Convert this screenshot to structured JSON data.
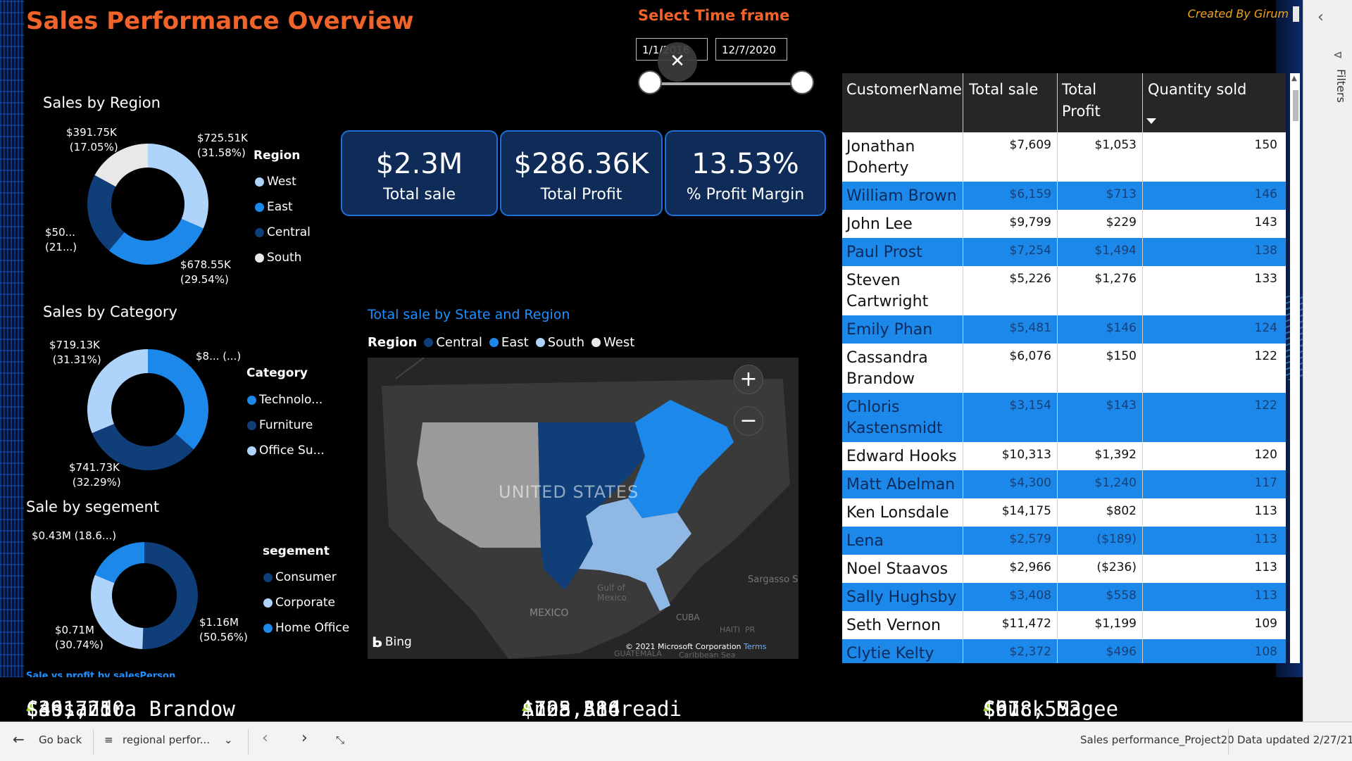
{
  "title": "Sales Performance Overview",
  "credit": "Created By Girum",
  "timeframe": {
    "title": "Select Time frame",
    "start": "1/1/2016",
    "end": "12/7/2020"
  },
  "region_chart": {
    "title": "Sales by Region",
    "legend_title": "Region",
    "slices": [
      {
        "name": "West",
        "value": "$725.51K",
        "pct": "(31.58%)",
        "color": "#aed4fb"
      },
      {
        "name": "East",
        "value": "$678.55K",
        "pct": "(29.54%)",
        "color": "#1c88ea"
      },
      {
        "name": "Central",
        "value": "$50...",
        "pct": "(21...)",
        "color": "#0f3e78"
      },
      {
        "name": "South",
        "value": "$391.75K",
        "pct": "(17.05%)",
        "color": "#e8e8e8"
      }
    ]
  },
  "category_chart": {
    "title": "Sales by Category",
    "legend_title": "Category",
    "slices": [
      {
        "name": "Technolo...",
        "value": "$8...",
        "pct": "(...)",
        "color": "#1c88ea"
      },
      {
        "name": "Furniture",
        "value": "$741.73K",
        "pct": "(32.29%)",
        "color": "#0f3e78"
      },
      {
        "name": "Office Su...",
        "value": "$719.13K",
        "pct": "(31.31%)",
        "color": "#aed4fb"
      }
    ]
  },
  "segment_chart": {
    "title": "Sale by segement",
    "legend_title": "segement",
    "slices": [
      {
        "name": "Consumer",
        "value": "$1.16M",
        "pct": "(50.56%)",
        "color": "#0f3e78"
      },
      {
        "name": "Corporate",
        "value": "$0.71M",
        "pct": "(30.74%)",
        "color": "#aed4fb"
      },
      {
        "name": "Home Office",
        "value": "$0.43M",
        "pct": "(18.6...)",
        "color": "#1c88ea"
      }
    ]
  },
  "kpis": [
    {
      "value": "$2.3M",
      "label": "Total sale"
    },
    {
      "value": "$286.36K",
      "label": "Total Profit"
    },
    {
      "value": "13.53%",
      "label": "% Profit Margin"
    }
  ],
  "map": {
    "title": "Total sale by State and Region",
    "legend_title": "Region",
    "legend": [
      {
        "name": "Central",
        "color": "#0f3e78"
      },
      {
        "name": "East",
        "color": "#1c88ea"
      },
      {
        "name": "South",
        "color": "#aed4fb"
      },
      {
        "name": "West",
        "color": "#e8e8e8"
      }
    ],
    "label_us": "UNITED STATES",
    "label_mexico": "MEXICO",
    "label_gulf": "Gulf of Mexico",
    "label_cuba": "CUBA",
    "label_sargasso": "Sargasso S",
    "label_guatemala": "GUATEMALA",
    "label_caribbean": "Caribbean Sea",
    "label_haiti": "HAITI",
    "label_pr": "PR",
    "attribution": "© 2021 Microsoft Corporation",
    "terms": "Terms",
    "bing": "Bing"
  },
  "table": {
    "headers": [
      "CustomerName",
      "Total sale",
      "Total Profit",
      "Quantity sold"
    ],
    "rows": [
      {
        "name": "Jonathan Doherty",
        "sale": "$7,609",
        "profit": "$1,053",
        "qty": "150"
      },
      {
        "name": "William Brown",
        "sale": "$6,159",
        "profit": "$713",
        "qty": "146"
      },
      {
        "name": "John Lee",
        "sale": "$9,799",
        "profit": "$229",
        "qty": "143"
      },
      {
        "name": "Paul Prost",
        "sale": "$7,254",
        "profit": "$1,494",
        "qty": "138"
      },
      {
        "name": "Steven Cartwright",
        "sale": "$5,226",
        "profit": "$1,276",
        "qty": "133"
      },
      {
        "name": "Emily Phan",
        "sale": "$5,481",
        "profit": "$146",
        "qty": "124"
      },
      {
        "name": "Cassandra Brandow",
        "sale": "$6,076",
        "profit": "$150",
        "qty": "122"
      },
      {
        "name": "Chloris Kastensmidt",
        "sale": "$3,154",
        "profit": "$143",
        "qty": "122"
      },
      {
        "name": "Edward Hooks",
        "sale": "$10,313",
        "profit": "$1,392",
        "qty": "120"
      },
      {
        "name": "Matt Abelman",
        "sale": "$4,300",
        "profit": "$1,240",
        "qty": "117"
      },
      {
        "name": "Ken Lonsdale",
        "sale": "$14,175",
        "profit": "$802",
        "qty": "113"
      },
      {
        "name": "Lena Cacioppo",
        "sale": "$2,579",
        "profit": "($189)",
        "qty": "113"
      },
      {
        "name": "Noel Staavos",
        "sale": "$2,966",
        "profit": "($236)",
        "qty": "113"
      },
      {
        "name": "Sally Hughsby",
        "sale": "$3,408",
        "profit": "$558",
        "qty": "113"
      },
      {
        "name": "Seth Vernon",
        "sale": "$11,472",
        "profit": "$1,199",
        "qty": "109"
      },
      {
        "name": "Clytie Kelty",
        "sale": "$2,372",
        "profit": "$496",
        "qty": "108"
      }
    ]
  },
  "ticker": {
    "label": "Sale vs profit by salesPerson",
    "items": [
      {
        "name": "Cassandra Brandow",
        "sale": "$391,750",
        "profit": "$46,721"
      },
      {
        "name": "Anna Andreadi",
        "sale": "$725,514",
        "profit": "$108,386"
      },
      {
        "name": "Chuck Magee",
        "sale": "$678,553",
        "profit": "$91"
      }
    ]
  },
  "filters_label": "Filters",
  "bottom_bar": {
    "go_back": "Go back",
    "page": "regional perfor...",
    "report": "Sales performance_Project20",
    "updated": "Data updated 2/27/21"
  }
}
